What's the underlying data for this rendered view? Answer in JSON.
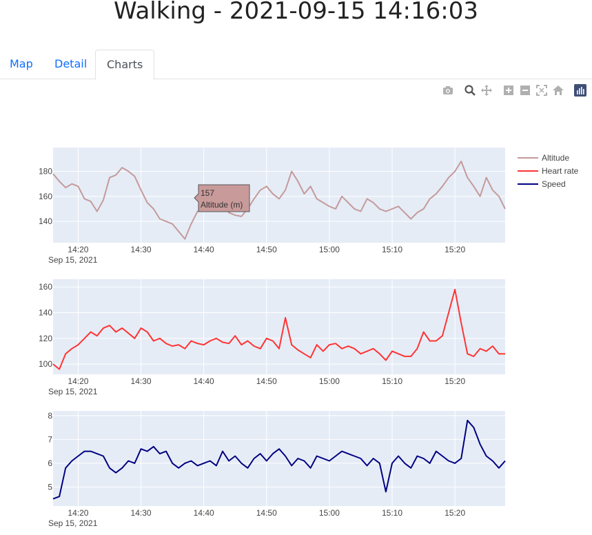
{
  "page": {
    "title": "Walking - 2021-09-15 14:16:03"
  },
  "tabs": [
    {
      "label": "Map",
      "active": false
    },
    {
      "label": "Detail",
      "active": false
    },
    {
      "label": "Charts",
      "active": true
    }
  ],
  "modebar": [
    "camera-icon",
    "zoom-icon",
    "pan-icon",
    "zoom-in-icon",
    "zoom-out-icon",
    "autoscale-icon",
    "reset-axes-icon",
    "plotly-logo-icon"
  ],
  "tooltip": {
    "value": "157",
    "label": "Altitude (m)"
  },
  "colors": {
    "altitude": "#c49a9a",
    "heart_rate": "#ff3333",
    "speed": "#000080",
    "plot_bg": "#e5ecf6"
  },
  "chart_data": [
    {
      "type": "line",
      "series": [
        {
          "name": "Altitude",
          "x": [
            "14:16",
            "14:17",
            "14:18",
            "14:19",
            "14:20",
            "14:21",
            "14:22",
            "14:23",
            "14:24",
            "14:25",
            "14:26",
            "14:27",
            "14:28",
            "14:29",
            "14:30",
            "14:31",
            "14:32",
            "14:33",
            "14:34",
            "14:35",
            "14:36",
            "14:37",
            "14:38",
            "14:39",
            "14:40",
            "14:41",
            "14:42",
            "14:43",
            "14:44",
            "14:45",
            "14:46",
            "14:47",
            "14:48",
            "14:49",
            "14:50",
            "14:51",
            "14:52",
            "14:53",
            "14:54",
            "14:55",
            "14:56",
            "14:57",
            "14:58",
            "14:59",
            "15:00",
            "15:01",
            "15:02",
            "15:03",
            "15:04",
            "15:05",
            "15:06",
            "15:07",
            "15:08",
            "15:09",
            "15:10",
            "15:11",
            "15:12",
            "15:13",
            "15:14",
            "15:15",
            "15:16",
            "15:17",
            "15:18",
            "15:19",
            "15:20",
            "15:21",
            "15:22",
            "15:23",
            "15:24",
            "15:25",
            "15:26",
            "15:27",
            "15:28"
          ],
          "values": [
            178,
            172,
            167,
            170,
            168,
            158,
            156,
            148,
            157,
            175,
            177,
            183,
            180,
            176,
            165,
            155,
            150,
            142,
            140,
            138,
            132,
            126,
            138,
            148,
            150,
            155,
            156,
            153,
            147,
            145,
            144,
            150,
            158,
            165,
            168,
            162,
            158,
            165,
            180,
            172,
            162,
            168,
            158,
            155,
            152,
            150,
            160,
            155,
            150,
            148,
            158,
            155,
            150,
            148,
            150,
            152,
            147,
            142,
            147,
            150,
            158,
            162,
            168,
            175,
            180,
            188,
            175,
            168,
            160,
            175,
            165,
            160,
            150
          ]
        }
      ],
      "xticks": [
        "14:20",
        "14:30",
        "14:40",
        "14:50",
        "15:00",
        "15:10",
        "15:20"
      ],
      "date_label": "Sep 15, 2021",
      "yticks": [
        140,
        160,
        180
      ],
      "ylim": [
        123,
        199
      ]
    },
    {
      "type": "line",
      "series": [
        {
          "name": "Heart rate",
          "x": [
            "14:16",
            "14:17",
            "14:18",
            "14:19",
            "14:20",
            "14:21",
            "14:22",
            "14:23",
            "14:24",
            "14:25",
            "14:26",
            "14:27",
            "14:28",
            "14:29",
            "14:30",
            "14:31",
            "14:32",
            "14:33",
            "14:34",
            "14:35",
            "14:36",
            "14:37",
            "14:38",
            "14:39",
            "14:40",
            "14:41",
            "14:42",
            "14:43",
            "14:44",
            "14:45",
            "14:46",
            "14:47",
            "14:48",
            "14:49",
            "14:50",
            "14:51",
            "14:52",
            "14:53",
            "14:54",
            "14:55",
            "14:56",
            "14:57",
            "14:58",
            "14:59",
            "15:00",
            "15:01",
            "15:02",
            "15:03",
            "15:04",
            "15:05",
            "15:06",
            "15:07",
            "15:08",
            "15:09",
            "15:10",
            "15:11",
            "15:12",
            "15:13",
            "15:14",
            "15:15",
            "15:16",
            "15:17",
            "15:18",
            "15:19",
            "15:20",
            "15:21",
            "15:22",
            "15:23",
            "15:24",
            "15:25",
            "15:26",
            "15:27",
            "15:28"
          ],
          "values": [
            100,
            96,
            108,
            112,
            115,
            120,
            125,
            122,
            128,
            130,
            125,
            128,
            124,
            120,
            128,
            125,
            118,
            120,
            116,
            114,
            115,
            112,
            118,
            116,
            115,
            118,
            120,
            117,
            116,
            122,
            115,
            118,
            114,
            112,
            120,
            118,
            112,
            136,
            115,
            111,
            108,
            105,
            115,
            110,
            115,
            116,
            112,
            114,
            112,
            108,
            110,
            112,
            108,
            103,
            110,
            108,
            106,
            106,
            112,
            125,
            118,
            118,
            122,
            140,
            158,
            132,
            108,
            106,
            112,
            110,
            114,
            108,
            108
          ]
        }
      ],
      "xticks": [
        "14:20",
        "14:30",
        "14:40",
        "14:50",
        "15:00",
        "15:10",
        "15:20"
      ],
      "date_label": "Sep 15, 2021",
      "yticks": [
        100,
        120,
        140,
        160
      ],
      "ylim": [
        92,
        166
      ]
    },
    {
      "type": "line",
      "series": [
        {
          "name": "Speed",
          "x": [
            "14:16",
            "14:17",
            "14:18",
            "14:19",
            "14:20",
            "14:21",
            "14:22",
            "14:23",
            "14:24",
            "14:25",
            "14:26",
            "14:27",
            "14:28",
            "14:29",
            "14:30",
            "14:31",
            "14:32",
            "14:33",
            "14:34",
            "14:35",
            "14:36",
            "14:37",
            "14:38",
            "14:39",
            "14:40",
            "14:41",
            "14:42",
            "14:43",
            "14:44",
            "14:45",
            "14:46",
            "14:47",
            "14:48",
            "14:49",
            "14:50",
            "14:51",
            "14:52",
            "14:53",
            "14:54",
            "14:55",
            "14:56",
            "14:57",
            "14:58",
            "14:59",
            "15:00",
            "15:01",
            "15:02",
            "15:03",
            "15:04",
            "15:05",
            "15:06",
            "15:07",
            "15:08",
            "15:09",
            "15:10",
            "15:11",
            "15:12",
            "15:13",
            "15:14",
            "15:15",
            "15:16",
            "15:17",
            "15:18",
            "15:19",
            "15:20",
            "15:21",
            "15:22",
            "15:23",
            "15:24",
            "15:25",
            "15:26",
            "15:27",
            "15:28"
          ],
          "values": [
            4.5,
            4.6,
            5.8,
            6.1,
            6.3,
            6.5,
            6.5,
            6.4,
            6.3,
            5.8,
            5.6,
            5.8,
            6.1,
            6.0,
            6.6,
            6.5,
            6.7,
            6.4,
            6.5,
            6.0,
            5.8,
            6.0,
            6.1,
            5.9,
            6.0,
            6.1,
            5.9,
            6.5,
            6.1,
            6.3,
            6.0,
            5.8,
            6.2,
            6.4,
            6.1,
            6.4,
            6.6,
            6.3,
            5.9,
            6.2,
            6.1,
            5.8,
            6.3,
            6.2,
            6.1,
            6.3,
            6.5,
            6.4,
            6.3,
            6.2,
            5.9,
            6.2,
            6.0,
            4.8,
            6.0,
            6.3,
            6.0,
            5.8,
            6.3,
            6.2,
            6.0,
            6.5,
            6.3,
            6.1,
            6.0,
            6.2,
            7.8,
            7.5,
            6.8,
            6.3,
            6.1,
            5.8,
            6.1
          ]
        }
      ],
      "xticks": [
        "14:20",
        "14:30",
        "14:40",
        "14:50",
        "15:00",
        "15:10",
        "15:20"
      ],
      "date_label": "Sep 15, 2021",
      "yticks": [
        5,
        6,
        7,
        8
      ],
      "ylim": [
        4.2,
        8.2
      ]
    }
  ]
}
